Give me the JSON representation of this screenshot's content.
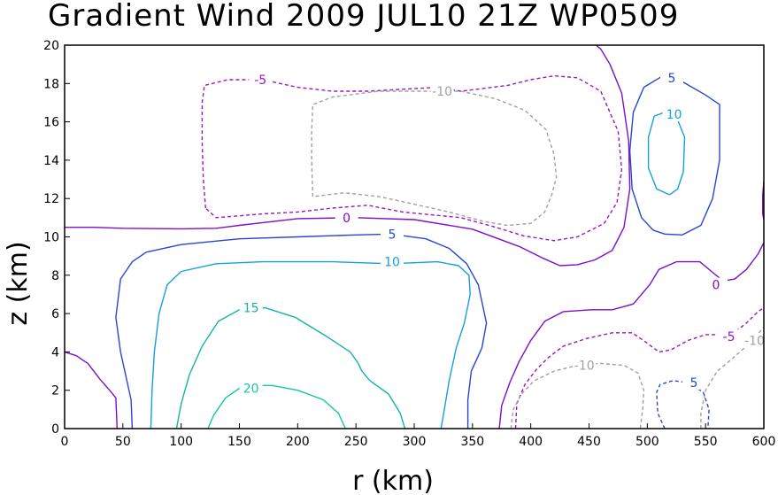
{
  "chart_data": {
    "type": "contour",
    "title": "Gradient Wind 2009 JUL10 21Z  WP0509",
    "xlabel": "r (km)",
    "ylabel": "z (km)",
    "xlim": [
      0,
      600
    ],
    "ylim": [
      0,
      20
    ],
    "xticks": [
      "0",
      "50",
      "100",
      "150",
      "200",
      "250",
      "300",
      "350",
      "400",
      "450",
      "500",
      "550",
      "600"
    ],
    "yticks": [
      "0",
      "2",
      "4",
      "6",
      "8",
      "10",
      "12",
      "14",
      "16",
      "18",
      "20"
    ],
    "level_colors": {
      "-10": "#a0a0a0",
      "-5": "#9b14c8",
      "0": "#7c0fc7",
      "5": "#2846d2",
      "10": "#14a0dc",
      "15": "#14b4a0",
      "20": "#14c8a0"
    },
    "contours": [
      {
        "level": 20,
        "label": "20",
        "style": "solid",
        "points": [
          [
            123,
            0
          ],
          [
            128,
            0.7
          ],
          [
            138,
            1.6
          ],
          [
            150,
            2.1
          ],
          [
            162,
            2.25
          ],
          [
            178,
            2.25
          ],
          [
            200,
            2.0
          ],
          [
            222,
            1.5
          ],
          [
            235,
            0.8
          ],
          [
            241,
            0
          ]
        ],
        "label_pos": [
          160,
          2.1
        ]
      },
      {
        "level": 15,
        "label": "15",
        "style": "solid",
        "points": [
          [
            96,
            0
          ],
          [
            100,
            1.3
          ],
          [
            107,
            2.8
          ],
          [
            118,
            4.3
          ],
          [
            132,
            5.6
          ],
          [
            150,
            6.2
          ],
          [
            172,
            6.3
          ],
          [
            198,
            5.8
          ],
          [
            225,
            4.8
          ],
          [
            245,
            4.0
          ],
          [
            252,
            3.4
          ],
          [
            255,
            3.0
          ],
          [
            262,
            2.5
          ],
          [
            278,
            1.8
          ],
          [
            288,
            0.8
          ],
          [
            292,
            0
          ]
        ],
        "label_pos": [
          160,
          6.3
        ]
      },
      {
        "level": 10,
        "label": "10",
        "style": "solid",
        "points": [
          [
            74,
            0
          ],
          [
            75,
            2
          ],
          [
            77,
            4
          ],
          [
            81,
            6
          ],
          [
            88,
            7.5
          ],
          [
            100,
            8.2
          ],
          [
            130,
            8.6
          ],
          [
            170,
            8.7
          ],
          [
            230,
            8.7
          ],
          [
            280,
            8.6
          ],
          [
            320,
            8.7
          ],
          [
            338,
            8.5
          ],
          [
            347,
            8.0
          ],
          [
            348,
            7.0
          ],
          [
            343,
            5.5
          ],
          [
            336,
            4.2
          ],
          [
            330,
            2.5
          ],
          [
            325,
            0.7
          ],
          [
            323,
            0
          ]
        ],
        "label_pos": [
          281,
          8.7
        ]
      },
      {
        "level": 5,
        "label": "5",
        "style": "solid",
        "points": [
          [
            58,
            0
          ],
          [
            57,
            1.5
          ],
          [
            48,
            4.0
          ],
          [
            44,
            5.8
          ],
          [
            48,
            7.8
          ],
          [
            58,
            8.7
          ],
          [
            70,
            9.2
          ],
          [
            100,
            9.6
          ],
          [
            150,
            9.9
          ],
          [
            200,
            10.0
          ],
          [
            250,
            10.1
          ],
          [
            280,
            10.15
          ],
          [
            310,
            9.9
          ],
          [
            330,
            9.4
          ],
          [
            345,
            8.6
          ],
          [
            355,
            7.5
          ],
          [
            362,
            5.5
          ],
          [
            358,
            4.2
          ],
          [
            349,
            3.0
          ],
          [
            346,
            1.5
          ],
          [
            346,
            0
          ]
        ],
        "label_pos": [
          281,
          10.15
        ]
      },
      {
        "level": 5,
        "label": "5",
        "style": "solid",
        "points": [
          [
            505,
            10.35
          ],
          [
            495,
            11.0
          ],
          [
            487,
            12.5
          ],
          [
            485,
            14.5
          ],
          [
            488,
            16.5
          ],
          [
            497,
            17.8
          ],
          [
            512,
            18.35
          ],
          [
            530,
            18.1
          ],
          [
            550,
            17.4
          ],
          [
            562,
            16.9
          ],
          [
            562,
            14.0
          ],
          [
            556,
            12.0
          ],
          [
            546,
            10.6
          ],
          [
            530,
            10.1
          ],
          [
            515,
            10.15
          ],
          [
            505,
            10.35
          ]
        ],
        "label_pos": [
          521,
          18.3
        ]
      },
      {
        "level": 10,
        "label": "10",
        "style": "solid",
        "points": [
          [
            519,
            12.2
          ],
          [
            508,
            12.5
          ],
          [
            501,
            13.6
          ],
          [
            501,
            15.2
          ],
          [
            506,
            16.3
          ],
          [
            515,
            16.5
          ],
          [
            526,
            16.1
          ],
          [
            532,
            15.2
          ],
          [
            531,
            13.4
          ],
          [
            526,
            12.5
          ],
          [
            519,
            12.2
          ]
        ],
        "label_pos": [
          523,
          16.4
        ]
      },
      {
        "level": 0,
        "label": "0",
        "style": "solid",
        "points": [
          [
            0,
            10.5
          ],
          [
            25,
            10.5
          ],
          [
            50,
            10.45
          ],
          [
            100,
            10.42
          ],
          [
            130,
            10.45
          ],
          [
            150,
            10.6
          ],
          [
            200,
            10.95
          ],
          [
            250,
            11.0
          ],
          [
            300,
            10.9
          ],
          [
            350,
            10.4
          ],
          [
            390,
            9.5
          ],
          [
            410,
            8.9
          ],
          [
            425,
            8.5
          ],
          [
            440,
            8.55
          ],
          [
            455,
            8.8
          ],
          [
            470,
            9.3
          ],
          [
            480,
            10.5
          ],
          [
            485,
            12.5
          ],
          [
            484,
            15.0
          ],
          [
            478,
            17.5
          ],
          [
            468,
            19.0
          ],
          [
            460,
            19.8
          ],
          [
            456,
            20
          ]
        ],
        "label_pos": [
          242,
          11.0
        ]
      },
      {
        "level": 0,
        "label": "0",
        "style": "solid",
        "points": [
          [
            0,
            4.0
          ],
          [
            10,
            3.8
          ],
          [
            20,
            3.4
          ],
          [
            30,
            2.6
          ],
          [
            40,
            1.9
          ],
          [
            44,
            1.6
          ],
          [
            45,
            0
          ]
        ],
        "label_pos": null
      },
      {
        "level": 0,
        "label": "0",
        "style": "solid",
        "points": [
          [
            373,
            0
          ],
          [
            375,
            1.2
          ],
          [
            382,
            2.4
          ],
          [
            390,
            3.5
          ],
          [
            400,
            4.6
          ],
          [
            412,
            5.6
          ],
          [
            428,
            6.1
          ],
          [
            452,
            6.2
          ],
          [
            470,
            6.2
          ],
          [
            488,
            6.5
          ],
          [
            502,
            7.5
          ],
          [
            510,
            8.3
          ],
          [
            525,
            8.7
          ],
          [
            545,
            8.7
          ],
          [
            555,
            8.2
          ],
          [
            565,
            7.7
          ],
          [
            575,
            7.8
          ],
          [
            585,
            8.3
          ],
          [
            595,
            9.1
          ],
          [
            600,
            9.7
          ]
        ],
        "label_pos": [
          559,
          7.5
        ]
      },
      {
        "level": 0,
        "label": "0",
        "style": "solid",
        "points": [
          [
            600,
            12.9
          ],
          [
            599,
            12.2
          ],
          [
            599,
            11.2
          ],
          [
            600,
            10.9
          ]
        ],
        "label_pos": null
      },
      {
        "level": -5,
        "label": "-5",
        "style": "dashed",
        "points": [
          [
            387,
            0
          ],
          [
            388,
            1.3
          ],
          [
            395,
            2.3
          ],
          [
            405,
            3.1
          ],
          [
            415,
            3.7
          ],
          [
            428,
            4.3
          ],
          [
            448,
            4.7
          ],
          [
            470,
            5.0
          ],
          [
            487,
            5.0
          ],
          [
            499,
            4.5
          ],
          [
            510,
            4.0
          ],
          [
            520,
            4.1
          ],
          [
            535,
            4.6
          ],
          [
            550,
            4.9
          ],
          [
            562,
            4.9
          ],
          [
            574,
            5.0
          ],
          [
            585,
            5.5
          ],
          [
            595,
            6.1
          ],
          [
            600,
            6.3
          ]
        ],
        "label_pos": [
          570,
          4.8
        ]
      },
      {
        "level": -5,
        "label": "-5",
        "style": "dashed",
        "points": [
          [
            121,
            11.5
          ],
          [
            119,
            13
          ],
          [
            118,
            15
          ],
          [
            118,
            17
          ],
          [
            120,
            17.9
          ],
          [
            140,
            18.2
          ],
          [
            170,
            18.2
          ],
          [
            200,
            17.8
          ],
          [
            230,
            17.6
          ],
          [
            260,
            17.6
          ],
          [
            320,
            17.8
          ],
          [
            340,
            17.6
          ],
          [
            380,
            17.9
          ],
          [
            400,
            18.2
          ],
          [
            420,
            18.4
          ],
          [
            440,
            18.3
          ],
          [
            460,
            17.6
          ],
          [
            475,
            15.5
          ],
          [
            478,
            13.5
          ],
          [
            474,
            11.8
          ],
          [
            463,
            10.7
          ],
          [
            440,
            10.0
          ],
          [
            420,
            9.8
          ],
          [
            394,
            10.05
          ],
          [
            370,
            10.5
          ],
          [
            340,
            11.0
          ],
          [
            290,
            11.3
          ],
          [
            260,
            11.65
          ],
          [
            230,
            11.5
          ],
          [
            200,
            11.3
          ],
          [
            170,
            11.2
          ],
          [
            150,
            11.1
          ],
          [
            130,
            11.0
          ],
          [
            121,
            11.5
          ]
        ],
        "label_pos": [
          168,
          18.2
        ]
      },
      {
        "level": -10,
        "label": "-10",
        "style": "dashed",
        "points": [
          [
            213,
            12.1
          ],
          [
            212,
            14
          ],
          [
            212,
            15.5
          ],
          [
            213,
            16.9
          ],
          [
            230,
            17.3
          ],
          [
            270,
            17.6
          ],
          [
            310,
            17.6
          ],
          [
            340,
            17.6
          ],
          [
            370,
            17.2
          ],
          [
            395,
            16.6
          ],
          [
            413,
            15.6
          ],
          [
            420,
            14.3
          ],
          [
            422,
            13.1
          ],
          [
            418,
            12.2
          ],
          [
            412,
            11.3
          ],
          [
            400,
            10.7
          ],
          [
            380,
            10.6
          ],
          [
            360,
            10.8
          ],
          [
            330,
            11.3
          ],
          [
            300,
            11.7
          ],
          [
            270,
            12.1
          ],
          [
            240,
            12.3
          ],
          [
            213,
            12.1
          ]
        ],
        "label_pos": [
          324,
          17.6
        ]
      },
      {
        "level": -10,
        "label": "-10",
        "style": "dashed",
        "points": [
          [
            383,
            0
          ],
          [
            385,
            1.0
          ],
          [
            392,
            1.8
          ],
          [
            403,
            2.5
          ],
          [
            420,
            3.0
          ],
          [
            440,
            3.3
          ],
          [
            460,
            3.4
          ],
          [
            480,
            3.3
          ],
          [
            492,
            2.9
          ],
          [
            497,
            2.0
          ],
          [
            496,
            1.0
          ],
          [
            494,
            0
          ]
        ],
        "label_pos": [
          446,
          3.3
        ]
      },
      {
        "level": -10,
        "label": "-10",
        "style": "dashed",
        "points": [
          [
            546,
            0
          ],
          [
            546,
            0.8
          ],
          [
            550,
            2.0
          ],
          [
            560,
            3.0
          ],
          [
            572,
            3.6
          ],
          [
            585,
            4.3
          ],
          [
            593,
            4.8
          ],
          [
            600,
            5.3
          ]
        ],
        "label_pos": [
          592,
          4.6
        ]
      },
      {
        "level": 5,
        "label": "5",
        "style": "dashed",
        "points": [
          [
            515,
            0
          ],
          [
            509,
            0.8
          ],
          [
            508,
            1.9
          ],
          [
            511,
            2.3
          ],
          [
            522,
            2.5
          ],
          [
            535,
            2.4
          ],
          [
            548,
            1.9
          ],
          [
            553,
            1.0
          ],
          [
            552,
            0
          ]
        ],
        "label_pos": [
          540,
          2.4
        ]
      }
    ]
  }
}
